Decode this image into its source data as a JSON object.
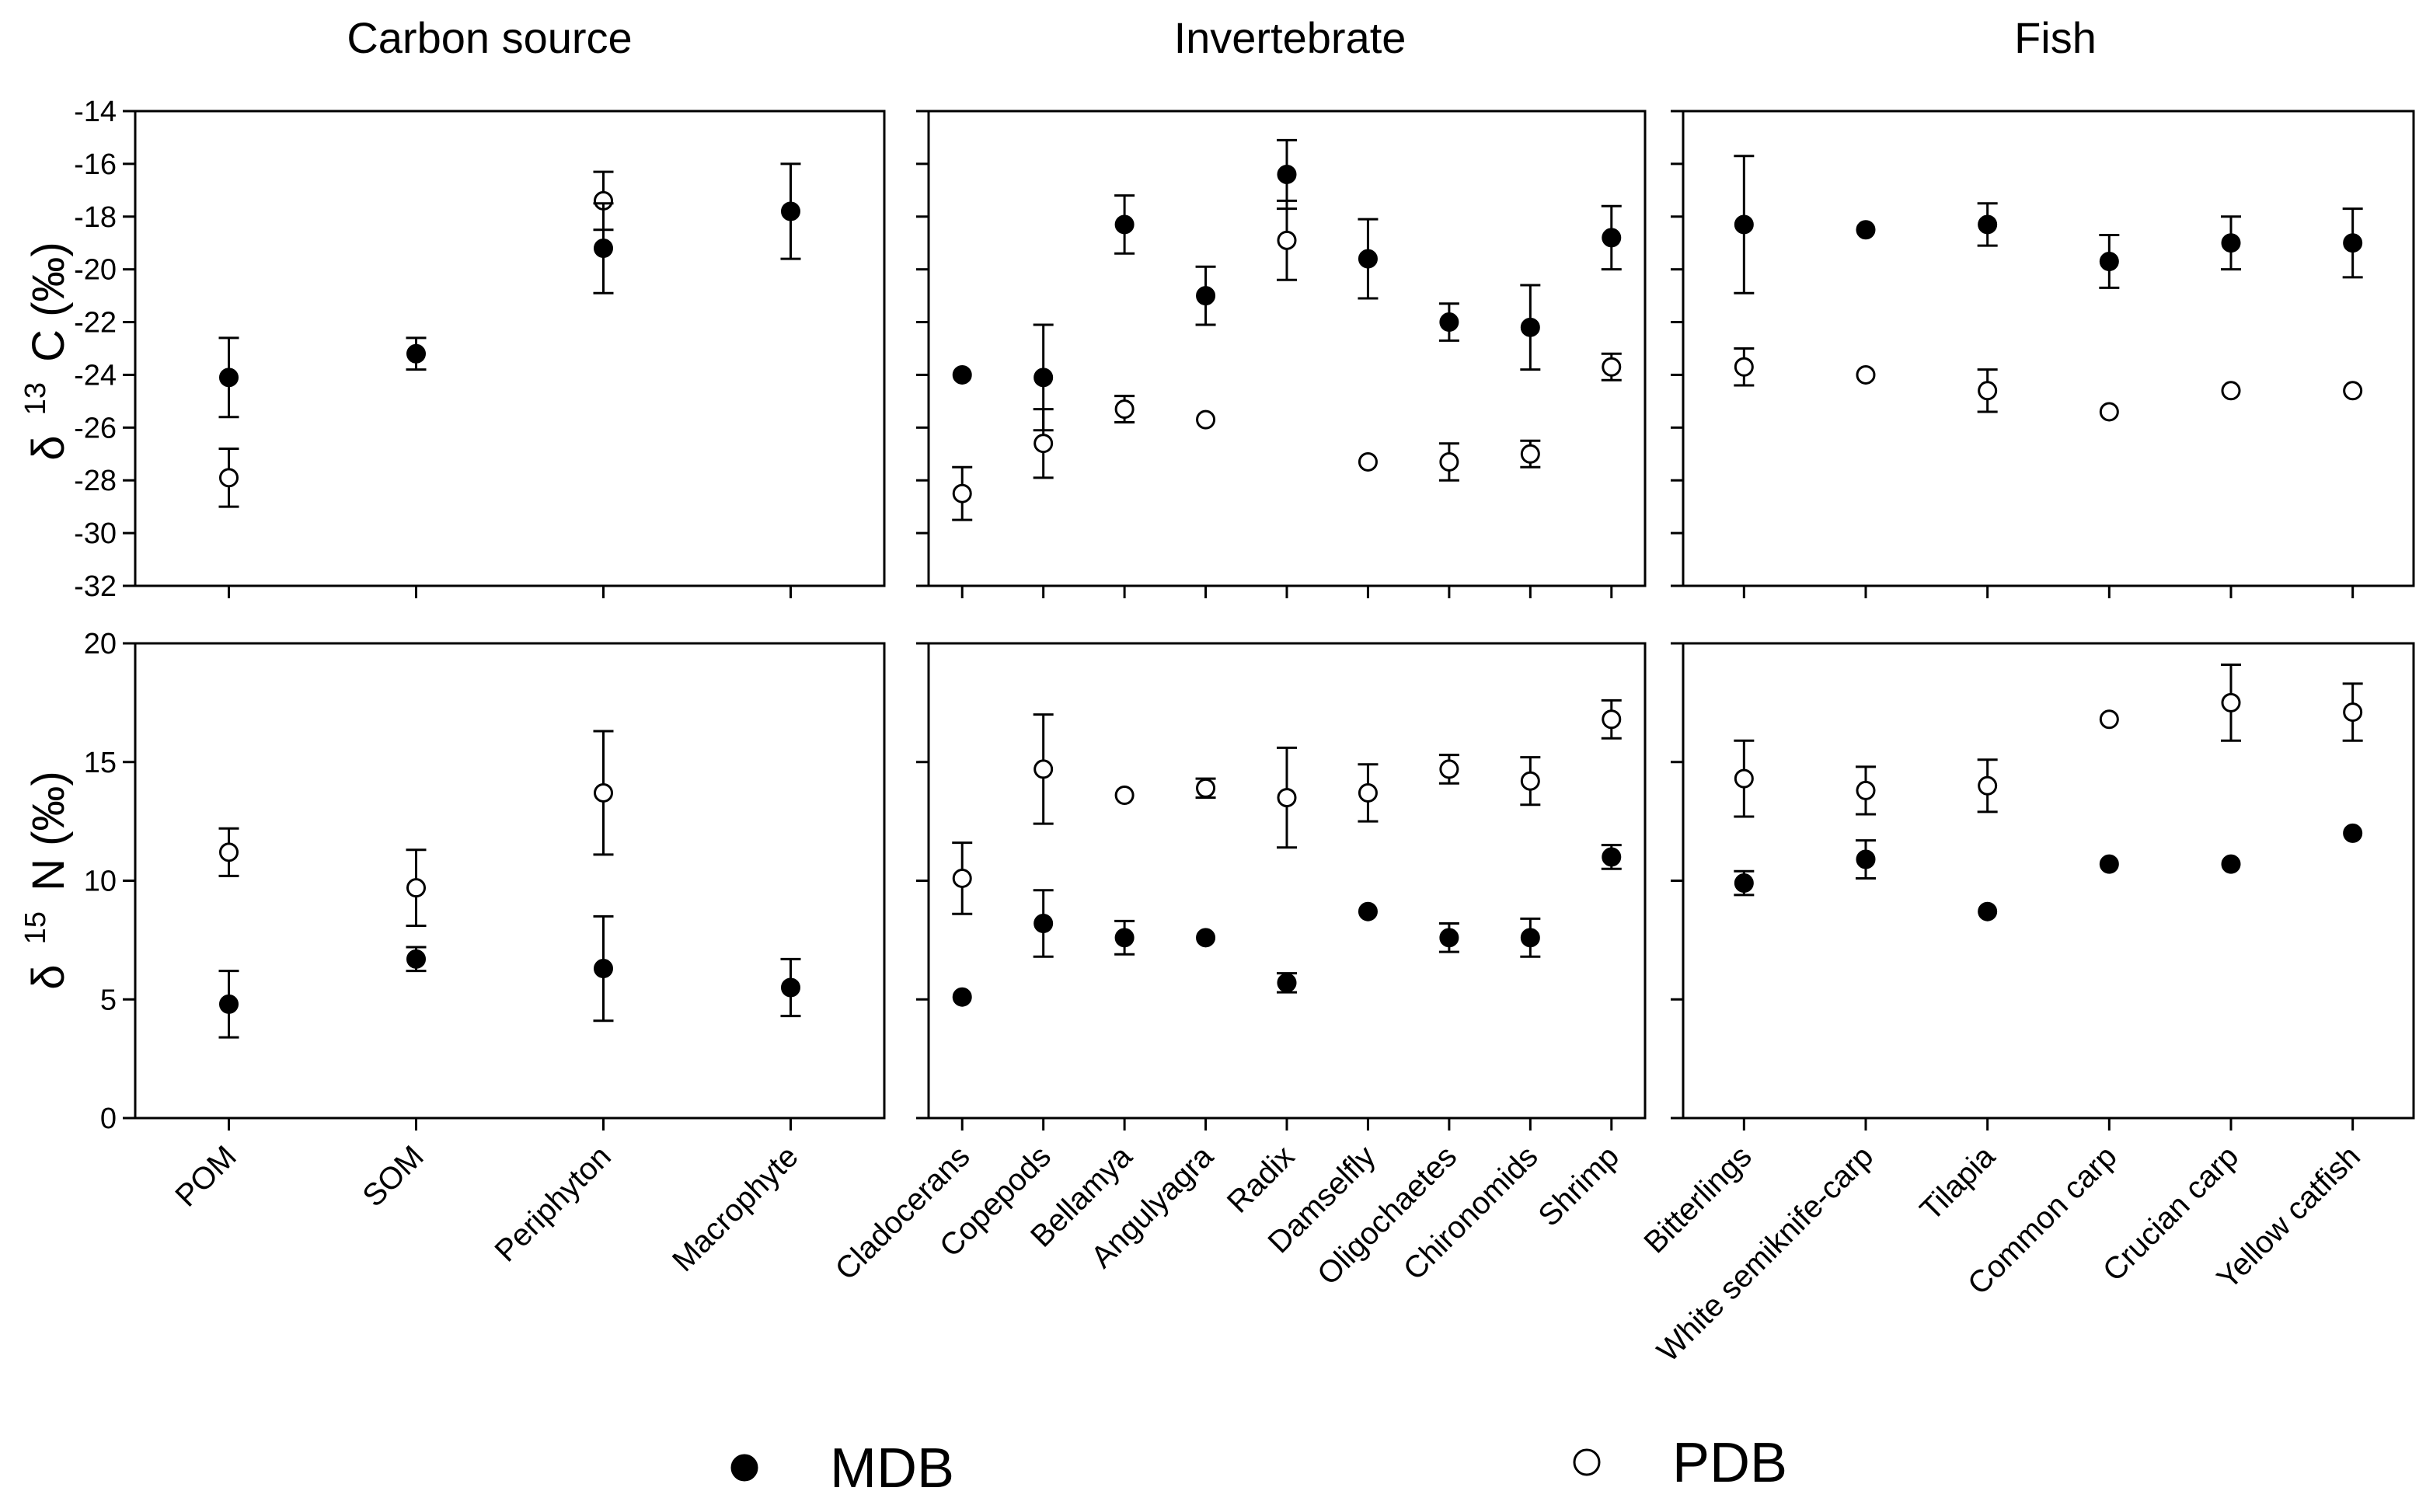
{
  "legend": {
    "mdb_label": "MDB",
    "pdb_label": "PDB"
  },
  "columns": [
    {
      "title": "Carbon source",
      "categories": [
        "POM",
        "SOM",
        "Periphyton",
        "Macrophyte"
      ]
    },
    {
      "title": "Invertebrate",
      "categories": [
        "Cladocerans",
        "Copepods",
        "Bellamya",
        "Angulyagra",
        "Radix",
        "Damselfly",
        "Oligochaetes",
        "Chironomids",
        "Shrimp"
      ]
    },
    {
      "title": "Fish",
      "categories": [
        "Bitterlings",
        "White semiknife-carp",
        "Tilapia",
        "Common carp",
        "Crucian carp",
        "Yellow catfish"
      ]
    }
  ],
  "rows": [
    {
      "ylabel_prefix": "δ",
      "ylabel_sup": "13",
      "ylabel_suffix": "C (‰)",
      "ylim": [
        -32,
        -14
      ],
      "ticks": [
        -32,
        -30,
        -28,
        -26,
        -24,
        -22,
        -20,
        -18,
        -16,
        -14
      ]
    },
    {
      "ylabel_prefix": "δ",
      "ylabel_sup": "15",
      "ylabel_suffix": "N (‰)",
      "ylim": [
        0,
        20
      ],
      "ticks": [
        0,
        5,
        10,
        15,
        20
      ]
    }
  ],
  "chart_data": [
    {
      "type": "scatter",
      "title": "Carbon source",
      "ylabel": "δ13C (‰)",
      "ylim": [
        -32,
        -14
      ],
      "categories": [
        "POM",
        "SOM",
        "Periphyton",
        "Macrophyte"
      ],
      "series": [
        {
          "name": "MDB",
          "values": [
            -24.1,
            -23.2,
            -19.2,
            -17.8
          ],
          "errors": [
            1.5,
            0.6,
            1.7,
            1.8
          ]
        },
        {
          "name": "PDB",
          "values": [
            -27.9,
            null,
            -17.4,
            null
          ],
          "errors": [
            1.1,
            null,
            1.1,
            null
          ]
        }
      ]
    },
    {
      "type": "scatter",
      "title": "Invertebrate",
      "ylabel": "δ13C (‰)",
      "ylim": [
        -32,
        -14
      ],
      "categories": [
        "Cladocerans",
        "Copepods",
        "Bellamya",
        "Angulyagra",
        "Radix",
        "Damselfly",
        "Oligochaetes",
        "Chironomids",
        "Shrimp"
      ],
      "series": [
        {
          "name": "MDB",
          "values": [
            -24.0,
            -24.1,
            -18.3,
            -21.0,
            -16.4,
            -19.6,
            -22.0,
            -22.2,
            -18.8
          ],
          "errors": [
            0,
            2.0,
            1.1,
            1.1,
            1.3,
            1.5,
            0.7,
            1.6,
            1.2
          ]
        },
        {
          "name": "PDB",
          "values": [
            -28.5,
            -26.6,
            -25.3,
            -25.7,
            -18.9,
            -27.3,
            -27.3,
            -27.0,
            -23.7
          ],
          "errors": [
            1.0,
            1.3,
            0.5,
            0,
            1.5,
            0,
            0.7,
            0.5,
            0.5
          ]
        }
      ]
    },
    {
      "type": "scatter",
      "title": "Fish",
      "ylabel": "δ13C (‰)",
      "ylim": [
        -32,
        -14
      ],
      "categories": [
        "Bitterlings",
        "White semiknife-carp",
        "Tilapia",
        "Common carp",
        "Crucian carp",
        "Yellow catfish"
      ],
      "series": [
        {
          "name": "MDB",
          "values": [
            -18.3,
            -18.5,
            -18.3,
            -19.7,
            -19.0,
            -19.0
          ],
          "errors": [
            2.6,
            0,
            0.8,
            1.0,
            1.0,
            1.3
          ]
        },
        {
          "name": "PDB",
          "values": [
            -23.7,
            -24.0,
            -24.6,
            -25.4,
            -24.6,
            -24.6
          ],
          "errors": [
            0.7,
            0,
            0.8,
            0,
            0,
            0
          ]
        }
      ]
    },
    {
      "type": "scatter",
      "title": "Carbon source",
      "ylabel": "δ15N (‰)",
      "ylim": [
        0,
        20
      ],
      "categories": [
        "POM",
        "SOM",
        "Periphyton",
        "Macrophyte"
      ],
      "series": [
        {
          "name": "MDB",
          "values": [
            4.8,
            6.7,
            6.3,
            5.5
          ],
          "errors": [
            1.4,
            0.5,
            2.2,
            1.2
          ]
        },
        {
          "name": "PDB",
          "values": [
            11.2,
            9.7,
            13.7,
            null
          ],
          "errors": [
            1.0,
            1.6,
            2.6,
            null
          ]
        }
      ]
    },
    {
      "type": "scatter",
      "title": "Invertebrate",
      "ylabel": "δ15N (‰)",
      "ylim": [
        0,
        20
      ],
      "categories": [
        "Cladocerans",
        "Copepods",
        "Bellamya",
        "Angulyagra",
        "Radix",
        "Damselfly",
        "Oligochaetes",
        "Chironomids",
        "Shrimp"
      ],
      "series": [
        {
          "name": "MDB",
          "values": [
            5.1,
            8.2,
            7.6,
            7.6,
            5.7,
            8.7,
            7.6,
            7.6,
            11.0
          ],
          "errors": [
            0,
            1.4,
            0.7,
            0,
            0.4,
            0,
            0.6,
            0.8,
            0.5
          ]
        },
        {
          "name": "PDB",
          "values": [
            10.1,
            14.7,
            13.6,
            13.9,
            13.5,
            13.7,
            14.7,
            14.2,
            16.8
          ],
          "errors": [
            1.5,
            2.3,
            0,
            0.4,
            2.1,
            1.2,
            0.6,
            1.0,
            0.8
          ]
        }
      ]
    },
    {
      "type": "scatter",
      "title": "Fish",
      "ylabel": "δ15N (‰)",
      "ylim": [
        0,
        20
      ],
      "categories": [
        "Bitterlings",
        "White semiknife-carp",
        "Tilapia",
        "Common carp",
        "Crucian carp",
        "Yellow catfish"
      ],
      "series": [
        {
          "name": "MDB",
          "values": [
            9.9,
            10.9,
            8.7,
            10.7,
            10.7,
            12.0
          ],
          "errors": [
            0.5,
            0.8,
            0,
            0,
            0,
            0
          ]
        },
        {
          "name": "PDB",
          "values": [
            14.3,
            13.8,
            14.0,
            16.8,
            17.5,
            17.1
          ],
          "errors": [
            1.6,
            1.0,
            1.1,
            0,
            1.6,
            1.2
          ]
        }
      ]
    }
  ]
}
